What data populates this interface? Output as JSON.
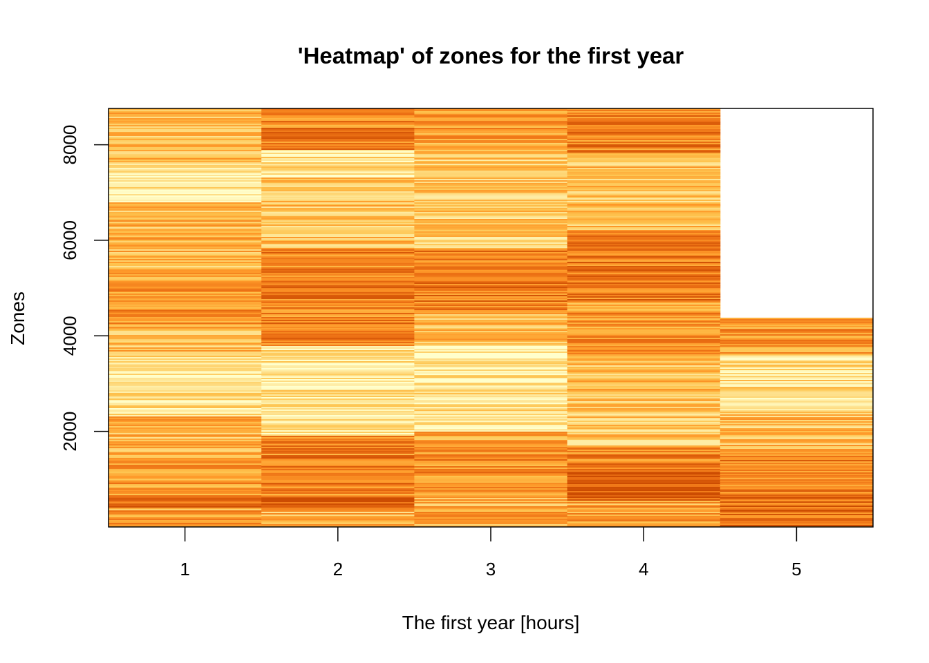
{
  "chart_data": {
    "type": "heatmap",
    "title": "'Heatmap' of zones for the first year",
    "xlabel": "The first year [hours]",
    "ylabel": "Zones",
    "x_categories": [
      "1",
      "2",
      "3",
      "4",
      "5"
    ],
    "y_ticks": [
      2000,
      4000,
      6000,
      8000
    ],
    "y_tick_labels": [
      "2000",
      "4000",
      "6000",
      "8000"
    ],
    "ylim": [
      0,
      8760
    ],
    "grid": false,
    "legend": "none",
    "color_palette": [
      "#ffffcc",
      "#fee391",
      "#fec44f",
      "#fe9929",
      "#ec7014",
      "#cc4c02"
    ],
    "columns": [
      {
        "x": "1",
        "zone_max": 8760,
        "bands": [
          {
            "from": 0,
            "to": 400,
            "level": 0.55
          },
          {
            "from": 400,
            "to": 650,
            "level": 0.85
          },
          {
            "from": 650,
            "to": 1400,
            "level": 0.6
          },
          {
            "from": 1400,
            "to": 2300,
            "level": 0.45
          },
          {
            "from": 2300,
            "to": 3600,
            "level": 0.2
          },
          {
            "from": 3600,
            "to": 4100,
            "level": 0.4
          },
          {
            "from": 4100,
            "to": 5200,
            "level": 0.6
          },
          {
            "from": 5200,
            "to": 6800,
            "level": 0.45
          },
          {
            "from": 6800,
            "to": 7600,
            "level": 0.15
          },
          {
            "from": 7600,
            "to": 8760,
            "level": 0.4
          }
        ]
      },
      {
        "x": "2",
        "zone_max": 8760,
        "bands": [
          {
            "from": 0,
            "to": 400,
            "level": 0.45
          },
          {
            "from": 400,
            "to": 650,
            "level": 0.9
          },
          {
            "from": 650,
            "to": 1900,
            "level": 0.7
          },
          {
            "from": 1900,
            "to": 3800,
            "level": 0.2
          },
          {
            "from": 3800,
            "to": 5800,
            "level": 0.7
          },
          {
            "from": 5800,
            "to": 7300,
            "level": 0.4
          },
          {
            "from": 7300,
            "to": 7900,
            "level": 0.2
          },
          {
            "from": 7900,
            "to": 8760,
            "level": 0.7
          }
        ]
      },
      {
        "x": "3",
        "zone_max": 8760,
        "bands": [
          {
            "from": 0,
            "to": 600,
            "level": 0.5
          },
          {
            "from": 600,
            "to": 1700,
            "level": 0.65
          },
          {
            "from": 1700,
            "to": 2000,
            "level": 0.5
          },
          {
            "from": 2000,
            "to": 3800,
            "level": 0.2
          },
          {
            "from": 3800,
            "to": 4500,
            "level": 0.45
          },
          {
            "from": 4500,
            "to": 5800,
            "level": 0.75
          },
          {
            "from": 5800,
            "to": 7800,
            "level": 0.35
          },
          {
            "from": 7800,
            "to": 8760,
            "level": 0.55
          }
        ]
      },
      {
        "x": "4",
        "zone_max": 8760,
        "bands": [
          {
            "from": 0,
            "to": 550,
            "level": 0.55
          },
          {
            "from": 550,
            "to": 1200,
            "level": 0.95
          },
          {
            "from": 1200,
            "to": 1700,
            "level": 0.7
          },
          {
            "from": 1700,
            "to": 2700,
            "level": 0.35
          },
          {
            "from": 2700,
            "to": 3500,
            "level": 0.4
          },
          {
            "from": 3500,
            "to": 4700,
            "level": 0.6
          },
          {
            "from": 4700,
            "to": 6200,
            "level": 0.75
          },
          {
            "from": 6200,
            "to": 7800,
            "level": 0.4
          },
          {
            "from": 7800,
            "to": 8760,
            "level": 0.7
          }
        ]
      },
      {
        "x": "5",
        "zone_max": 4380,
        "bands": [
          {
            "from": 0,
            "to": 700,
            "level": 0.8
          },
          {
            "from": 700,
            "to": 1500,
            "level": 0.7
          },
          {
            "from": 1500,
            "to": 2400,
            "level": 0.4
          },
          {
            "from": 2400,
            "to": 3600,
            "level": 0.25
          },
          {
            "from": 3600,
            "to": 4380,
            "level": 0.6
          }
        ]
      }
    ]
  }
}
